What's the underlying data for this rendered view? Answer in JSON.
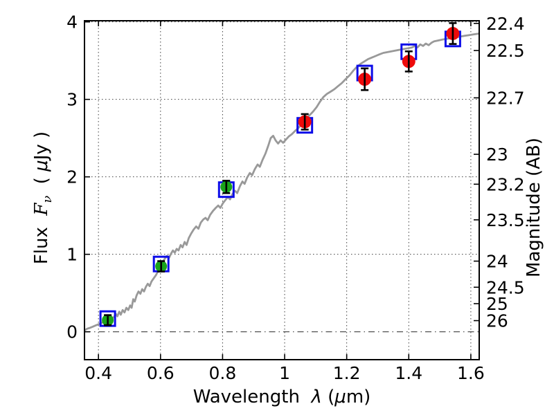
{
  "chart_data": {
    "type": "line",
    "title": "",
    "xlabel": {
      "text": "Wavelength",
      "symbol": "λ",
      "unit_open": "(",
      "unit_mu": "μ",
      "unit_close": "m)"
    },
    "ylabel_left": {
      "text": "Flux",
      "symbol": "F",
      "subscript": "ν",
      "unit_open": "( ",
      "unit_mu": "μ",
      "unit_close": "Jy )"
    },
    "ylabel_right": "Magnitude (AB)",
    "xlim": [
      0.355,
      1.627
    ],
    "ylim": [
      -0.36,
      4.015
    ],
    "grid_on": true,
    "legend": "none",
    "x_ticks": [
      {
        "value": 0.4,
        "label": "0.4"
      },
      {
        "value": 0.6,
        "label": "0.6"
      },
      {
        "value": 0.8,
        "label": "0.8"
      },
      {
        "value": 1.0,
        "label": "1"
      },
      {
        "value": 1.2,
        "label": "1.2"
      },
      {
        "value": 1.4,
        "label": "1.4"
      },
      {
        "value": 1.6,
        "label": "1.6"
      }
    ],
    "y_ticks_left": [
      {
        "value": 0,
        "label": "0"
      },
      {
        "value": 1,
        "label": "1"
      },
      {
        "value": 2,
        "label": "2"
      },
      {
        "value": 3,
        "label": "3"
      },
      {
        "value": 4,
        "label": "4"
      }
    ],
    "y_ticks_right": [
      {
        "flux": 3.981,
        "label": "22.4"
      },
      {
        "flux": 3.631,
        "label": "22.5"
      },
      {
        "flux": 3.02,
        "label": "22.7"
      },
      {
        "flux": 2.291,
        "label": "23"
      },
      {
        "flux": 1.905,
        "label": "23.2"
      },
      {
        "flux": 1.445,
        "label": "23.5"
      },
      {
        "flux": 0.912,
        "label": "24"
      },
      {
        "flux": 0.575,
        "label": "24.5"
      },
      {
        "flux": 0.363,
        "label": "25"
      },
      {
        "flux": 0.144,
        "label": "26"
      }
    ],
    "zero_line_flux": 0,
    "colors": {
      "background": "#ffffff",
      "frame": "#000000",
      "grid": "#3c3c3c",
      "spectrum": "#999999",
      "optical_points": "#1aa31a",
      "infrared_points": "#ee0b0b",
      "model_squares": "#0c0ce8",
      "errorbar": "#000000"
    },
    "spectrum": {
      "name": "model-spectrum",
      "color": "#999999",
      "line_width": 2.8,
      "points": [
        [
          0.356,
          0.02
        ],
        [
          0.364,
          0.04
        ],
        [
          0.372,
          0.05
        ],
        [
          0.381,
          0.065
        ],
        [
          0.39,
          0.08
        ],
        [
          0.399,
          0.095
        ],
        [
          0.408,
          0.11
        ],
        [
          0.417,
          0.13
        ],
        [
          0.426,
          0.145
        ],
        [
          0.434,
          0.16
        ],
        [
          0.443,
          0.175
        ],
        [
          0.45,
          0.19
        ],
        [
          0.456,
          0.23
        ],
        [
          0.461,
          0.2
        ],
        [
          0.467,
          0.26
        ],
        [
          0.472,
          0.22
        ],
        [
          0.478,
          0.28
        ],
        [
          0.484,
          0.25
        ],
        [
          0.49,
          0.31
        ],
        [
          0.496,
          0.28
        ],
        [
          0.502,
          0.34
        ],
        [
          0.507,
          0.31
        ],
        [
          0.512,
          0.42
        ],
        [
          0.517,
          0.39
        ],
        [
          0.523,
          0.47
        ],
        [
          0.529,
          0.52
        ],
        [
          0.535,
          0.49
        ],
        [
          0.541,
          0.55
        ],
        [
          0.547,
          0.52
        ],
        [
          0.553,
          0.58
        ],
        [
          0.559,
          0.62
        ],
        [
          0.565,
          0.59
        ],
        [
          0.571,
          0.65
        ],
        [
          0.578,
          0.69
        ],
        [
          0.585,
          0.73
        ],
        [
          0.593,
          0.79
        ],
        [
          0.601,
          0.86
        ],
        [
          0.608,
          0.91
        ],
        [
          0.615,
          0.95
        ],
        [
          0.621,
          0.98
        ],
        [
          0.627,
          0.95
        ],
        [
          0.634,
          1.01
        ],
        [
          0.64,
          1.05
        ],
        [
          0.646,
          1.02
        ],
        [
          0.652,
          1.07
        ],
        [
          0.658,
          1.05
        ],
        [
          0.665,
          1.12
        ],
        [
          0.671,
          1.09
        ],
        [
          0.678,
          1.16
        ],
        [
          0.684,
          1.12
        ],
        [
          0.691,
          1.21
        ],
        [
          0.699,
          1.27
        ],
        [
          0.707,
          1.32
        ],
        [
          0.715,
          1.36
        ],
        [
          0.722,
          1.33
        ],
        [
          0.73,
          1.41
        ],
        [
          0.738,
          1.45
        ],
        [
          0.745,
          1.47
        ],
        [
          0.752,
          1.44
        ],
        [
          0.76,
          1.51
        ],
        [
          0.769,
          1.56
        ],
        [
          0.778,
          1.6
        ],
        [
          0.786,
          1.63
        ],
        [
          0.793,
          1.6
        ],
        [
          0.801,
          1.66
        ],
        [
          0.809,
          1.7
        ],
        [
          0.817,
          1.74
        ],
        [
          0.824,
          1.71
        ],
        [
          0.832,
          1.78
        ],
        [
          0.84,
          1.82
        ],
        [
          0.847,
          1.79
        ],
        [
          0.856,
          1.88
        ],
        [
          0.864,
          1.94
        ],
        [
          0.871,
          1.91
        ],
        [
          0.879,
          1.99
        ],
        [
          0.888,
          2.05
        ],
        [
          0.895,
          2.02
        ],
        [
          0.904,
          2.1
        ],
        [
          0.913,
          2.16
        ],
        [
          0.92,
          2.13
        ],
        [
          0.929,
          2.22
        ],
        [
          0.938,
          2.3
        ],
        [
          0.947,
          2.4
        ],
        [
          0.955,
          2.5
        ],
        [
          0.963,
          2.53
        ],
        [
          0.971,
          2.47
        ],
        [
          0.979,
          2.43
        ],
        [
          0.987,
          2.47
        ],
        [
          0.995,
          2.44
        ],
        [
          1.004,
          2.48
        ],
        [
          1.013,
          2.52
        ],
        [
          1.023,
          2.55
        ],
        [
          1.033,
          2.59
        ],
        [
          1.044,
          2.63
        ],
        [
          1.055,
          2.68
        ],
        [
          1.067,
          2.73
        ],
        [
          1.079,
          2.79
        ],
        [
          1.091,
          2.84
        ],
        [
          1.103,
          2.9
        ],
        [
          1.114,
          2.97
        ],
        [
          1.125,
          3.03
        ],
        [
          1.136,
          3.07
        ],
        [
          1.148,
          3.1
        ],
        [
          1.16,
          3.13
        ],
        [
          1.172,
          3.17
        ],
        [
          1.184,
          3.21
        ],
        [
          1.196,
          3.26
        ],
        [
          1.209,
          3.31
        ],
        [
          1.221,
          3.37
        ],
        [
          1.233,
          3.42
        ],
        [
          1.245,
          3.46
        ],
        [
          1.257,
          3.49
        ],
        [
          1.269,
          3.52
        ],
        [
          1.281,
          3.54
        ],
        [
          1.293,
          3.56
        ],
        [
          1.305,
          3.58
        ],
        [
          1.318,
          3.6
        ],
        [
          1.331,
          3.61
        ],
        [
          1.344,
          3.62
        ],
        [
          1.357,
          3.63
        ],
        [
          1.37,
          3.64
        ],
        [
          1.384,
          3.65
        ],
        [
          1.398,
          3.66
        ],
        [
          1.41,
          3.67
        ],
        [
          1.42,
          3.69
        ],
        [
          1.428,
          3.67
        ],
        [
          1.437,
          3.71
        ],
        [
          1.446,
          3.69
        ],
        [
          1.455,
          3.72
        ],
        [
          1.464,
          3.7
        ],
        [
          1.473,
          3.73
        ],
        [
          1.482,
          3.75
        ],
        [
          1.494,
          3.76
        ],
        [
          1.506,
          3.77
        ],
        [
          1.52,
          3.78
        ],
        [
          1.535,
          3.79
        ],
        [
          1.55,
          3.8
        ],
        [
          1.565,
          3.81
        ],
        [
          1.58,
          3.82
        ],
        [
          1.595,
          3.83
        ],
        [
          1.61,
          3.84
        ],
        [
          1.627,
          3.85
        ]
      ]
    },
    "series": [
      {
        "name": "model-photometry-squares",
        "marker": "open-square",
        "color": "#0c0ce8",
        "size": 21,
        "stroke_width": 3,
        "points": [
          {
            "x": 0.43,
            "y": 0.17
          },
          {
            "x": 0.602,
            "y": 0.875
          },
          {
            "x": 0.812,
            "y": 1.835
          },
          {
            "x": 1.065,
            "y": 2.665
          },
          {
            "x": 1.258,
            "y": 3.34
          },
          {
            "x": 1.4,
            "y": 3.615
          },
          {
            "x": 1.542,
            "y": 3.78
          }
        ]
      },
      {
        "name": "observed-optical-points",
        "marker": "circle",
        "color": "#1aa31a",
        "radius": 8.5,
        "points": [
          {
            "x": 0.43,
            "y": 0.15,
            "yerr": 0.065
          },
          {
            "x": 0.602,
            "y": 0.845,
            "yerr": 0.067
          },
          {
            "x": 0.812,
            "y": 1.87,
            "yerr": 0.08
          }
        ]
      },
      {
        "name": "observed-infrared-points",
        "marker": "circle",
        "color": "#ee0b0b",
        "radius": 9.5,
        "points": [
          {
            "x": 1.065,
            "y": 2.71,
            "yerr": 0.1
          },
          {
            "x": 1.258,
            "y": 3.26,
            "yerr": 0.14
          },
          {
            "x": 1.4,
            "y": 3.49,
            "yerr": 0.13
          },
          {
            "x": 1.542,
            "y": 3.85,
            "yerr": 0.135
          }
        ]
      }
    ]
  }
}
